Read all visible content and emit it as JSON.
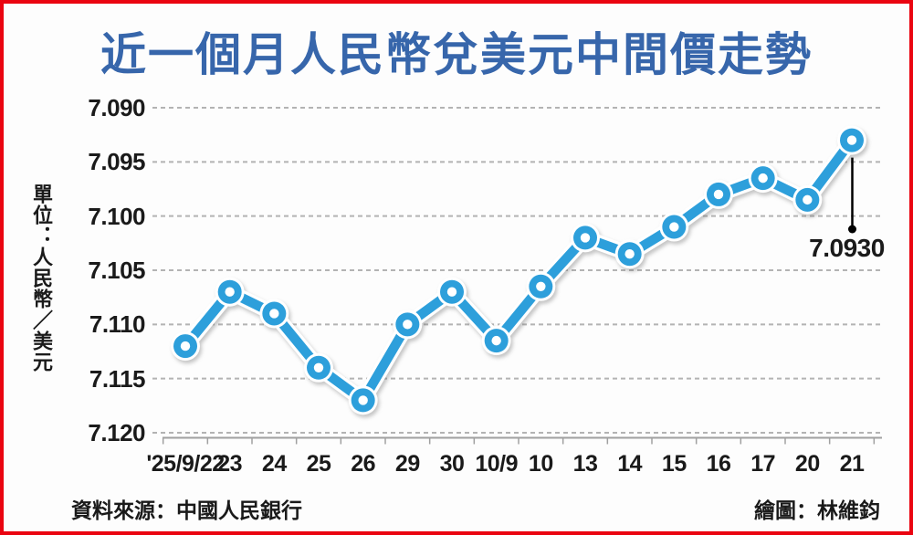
{
  "title": "近一個月人民幣兌美元中間價走勢",
  "y_axis_unit_label": "單位：人民幣／美元",
  "annotation_label": "7.0930",
  "footer": {
    "source": "資料來源：中國人民銀行",
    "credit": "繪圖：林維鈞"
  },
  "colors": {
    "line": "#2d9fdb",
    "marker_hole": "#ffffff",
    "casing": "#ffffff",
    "title": "#3766ab",
    "frame": "#ea0410",
    "grid": "#b3b3b3",
    "axis": "#a0a0a0",
    "text": "#1a1a1a",
    "annotation": "#000000"
  },
  "chart_data": {
    "type": "line",
    "title": "近一個月人民幣兌美元中間價走勢",
    "ylabel": "單位：人民幣／美元",
    "xlabel": "",
    "categories": [
      "'25/9/22",
      "23",
      "24",
      "25",
      "26",
      "29",
      "30",
      "10/9",
      "10",
      "13",
      "14",
      "15",
      "16",
      "17",
      "20",
      "21"
    ],
    "values": [
      7.112,
      7.107,
      7.109,
      7.114,
      7.117,
      7.11,
      7.107,
      7.1115,
      7.1065,
      7.102,
      7.1035,
      7.101,
      7.098,
      7.0965,
      7.0985,
      7.093
    ],
    "yticks": [
      7.09,
      7.095,
      7.1,
      7.105,
      7.11,
      7.115,
      7.12
    ],
    "ytick_labels": [
      "7.090",
      "7.095",
      "7.100",
      "7.105",
      "7.110",
      "7.115",
      "7.120"
    ],
    "ylim": [
      7.09,
      7.12
    ],
    "y_inverted": true,
    "grid": "horizontal-dashed",
    "legend": "none",
    "annotation": {
      "index": 15,
      "label": "7.0930"
    }
  }
}
